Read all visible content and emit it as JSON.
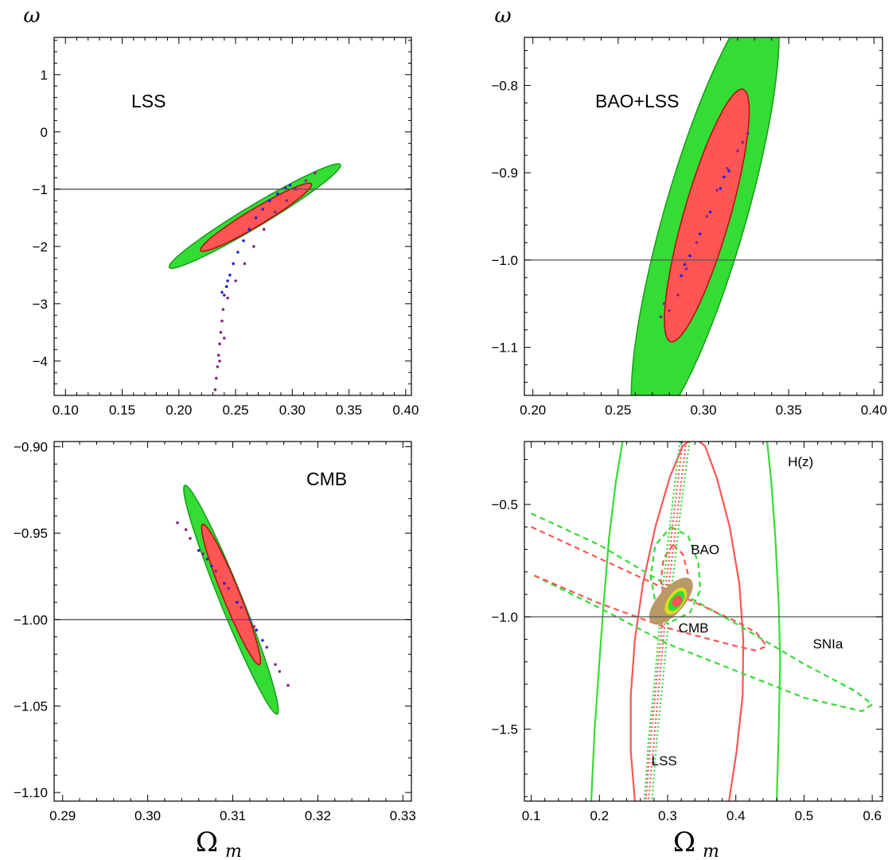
{
  "figure": {
    "xlabel": "Ω",
    "xlabel_sub": "m",
    "ylabel": "ω"
  },
  "colors": {
    "green": "#33dd33",
    "red": "#ff5555",
    "blue": "#2222dd",
    "purple": "#882288",
    "black": "#000000",
    "tan": "#bb9966",
    "yellow": "#dddd22"
  },
  "chart_data": [
    {
      "id": "lss",
      "type": "contour",
      "label": "LSS",
      "xlim": [
        0.09,
        0.405
      ],
      "ylim": [
        -4.6,
        1.65
      ],
      "xticks": [
        0.1,
        0.15,
        0.2,
        0.25,
        0.3,
        0.35,
        0.4
      ],
      "xtick_labels": [
        "0.10",
        "0.15",
        "0.20",
        "0.25",
        "0.30",
        "0.35",
        "0.40"
      ],
      "yticks": [
        1,
        0,
        -1,
        -2,
        -3,
        -4
      ],
      "ytick_labels": [
        "1",
        "0",
        "−1",
        "−2",
        "−3",
        "−4"
      ],
      "reference_line": -1,
      "ellipses": [
        {
          "level": "2sigma",
          "cx": 0.267,
          "cy": -1.47,
          "a": 0.088,
          "b": 0.0095,
          "angle": 31
        },
        {
          "level": "1sigma",
          "cx": 0.268,
          "cy": -1.49,
          "a": 0.057,
          "b": 0.0075,
          "angle": 31
        }
      ],
      "scatter": [
        {
          "color": "purple",
          "points": [
            [
              0.232,
              -4.5
            ],
            [
              0.233,
              -4.3
            ],
            [
              0.234,
              -4.1
            ],
            [
              0.235,
              -3.9
            ],
            [
              0.236,
              -3.7
            ],
            [
              0.237,
              -3.5
            ],
            [
              0.238,
              -3.3
            ],
            [
              0.239,
              -3.1
            ],
            [
              0.243,
              -2.9
            ],
            [
              0.25,
              -2.6
            ],
            [
              0.258,
              -2.3
            ],
            [
              0.266,
              -2.0
            ],
            [
              0.275,
              -1.7
            ],
            [
              0.285,
              -1.4
            ],
            [
              0.295,
              -1.2
            ],
            [
              0.303,
              -1.0
            ],
            [
              0.312,
              -0.85
            ],
            [
              0.32,
              -0.72
            ],
            [
              0.236,
              -4.0
            ],
            [
              0.24,
              -3.6
            ]
          ]
        },
        {
          "color": "blue",
          "points": [
            [
              0.24,
              -2.85
            ],
            [
              0.242,
              -2.7
            ],
            [
              0.245,
              -2.5
            ],
            [
              0.248,
              -2.3
            ],
            [
              0.252,
              -2.1
            ],
            [
              0.257,
              -1.9
            ],
            [
              0.262,
              -1.7
            ],
            [
              0.268,
              -1.5
            ],
            [
              0.274,
              -1.35
            ],
            [
              0.28,
              -1.2
            ],
            [
              0.287,
              -1.08
            ],
            [
              0.294,
              -0.98
            ],
            [
              0.298,
              -0.93
            ],
            [
              0.238,
              -2.8
            ],
            [
              0.243,
              -2.6
            ]
          ]
        }
      ]
    },
    {
      "id": "bao_lss",
      "type": "contour",
      "label": "BAO+LSS",
      "xlim": [
        0.195,
        0.405
      ],
      "ylim": [
        -1.155,
        -0.745
      ],
      "xticks": [
        0.2,
        0.25,
        0.3,
        0.35,
        0.4
      ],
      "xtick_labels": [
        "0.20",
        "0.25",
        "0.30",
        "0.35",
        "0.40"
      ],
      "yticks": [
        -0.8,
        -0.9,
        -1.0,
        -1.1
      ],
      "ytick_labels": [
        "−0.8",
        "−0.9",
        "−1.0",
        "−1.1"
      ],
      "reference_line": -1.0,
      "ellipses": [
        {
          "level": "2sigma",
          "cx": 0.301,
          "cy": -0.949,
          "a": 0.133,
          "b": 0.024,
          "angle": 74
        },
        {
          "level": "1sigma",
          "cx": 0.302,
          "cy": -0.949,
          "a": 0.077,
          "b": 0.0135,
          "angle": 74
        }
      ],
      "scatter": [
        {
          "color": "purple",
          "points": [
            [
              0.275,
              -1.065
            ],
            [
              0.28,
              -1.058
            ],
            [
              0.285,
              -1.04
            ],
            [
              0.29,
              -1.01
            ],
            [
              0.296,
              -0.98
            ],
            [
              0.302,
              -0.95
            ],
            [
              0.308,
              -0.92
            ],
            [
              0.314,
              -0.895
            ],
            [
              0.32,
              -0.875
            ],
            [
              0.326,
              -0.855
            ],
            [
              0.277,
              -1.05
            ],
            [
              0.323,
              -0.865
            ]
          ]
        },
        {
          "color": "blue",
          "points": [
            [
              0.287,
              -1.018
            ],
            [
              0.292,
              -0.995
            ],
            [
              0.298,
              -0.97
            ],
            [
              0.304,
              -0.945
            ],
            [
              0.31,
              -0.918
            ],
            [
              0.315,
              -0.898
            ],
            [
              0.289,
              -1.005
            ],
            [
              0.312,
              -0.905
            ]
          ]
        }
      ]
    },
    {
      "id": "cmb",
      "type": "contour",
      "label": "CMB",
      "xlim": [
        0.289,
        0.331
      ],
      "ylim": [
        -1.105,
        -0.897
      ],
      "xticks": [
        0.29,
        0.3,
        0.31,
        0.32,
        0.33
      ],
      "xtick_labels": [
        "0.29",
        "0.30",
        "0.31",
        "0.32",
        "0.33"
      ],
      "yticks": [
        -0.9,
        -0.95,
        -1.0,
        -1.05,
        -1.1
      ],
      "ytick_labels": [
        "−0.90",
        "−0.95",
        "−1.00",
        "−1.05",
        "−1.10"
      ],
      "reference_line": -1.0,
      "ellipses": [
        {
          "level": "2sigma",
          "cx": 0.3098,
          "cy": -0.9885,
          "a": 0.0145,
          "b": 0.0013,
          "angle": -68
        },
        {
          "level": "1sigma",
          "cx": 0.3098,
          "cy": -0.9855,
          "a": 0.0089,
          "b": 0.001,
          "angle": -68
        }
      ],
      "scatter": [
        {
          "color": "purple",
          "points": [
            [
              0.3035,
              -0.944
            ],
            [
              0.305,
              -0.953
            ],
            [
              0.3065,
              -0.962
            ],
            [
              0.308,
              -0.972
            ],
            [
              0.3095,
              -0.982
            ],
            [
              0.311,
              -0.993
            ],
            [
              0.3125,
              -1.004
            ],
            [
              0.314,
              -1.016
            ],
            [
              0.3155,
              -1.03
            ],
            [
              0.3165,
              -1.038
            ],
            [
              0.3045,
              -0.948
            ],
            [
              0.315,
              -1.026
            ]
          ]
        },
        {
          "color": "blue",
          "points": [
            [
              0.306,
              -0.96
            ],
            [
              0.3075,
              -0.969
            ],
            [
              0.309,
              -0.979
            ],
            [
              0.3105,
              -0.99
            ],
            [
              0.312,
              -1.0
            ],
            [
              0.3135,
              -1.012
            ],
            [
              0.307,
              -0.965
            ],
            [
              0.3128,
              -1.006
            ]
          ]
        }
      ]
    },
    {
      "id": "combined",
      "type": "contour",
      "labels": [
        "H(z)",
        "BAO",
        "CMB",
        "SNIa",
        "LSS"
      ],
      "xlim": [
        0.09,
        0.615
      ],
      "ylim": [
        -1.82,
        -0.22
      ],
      "xticks": [
        0.1,
        0.2,
        0.3,
        0.4,
        0.5,
        0.6
      ],
      "xtick_labels": [
        "0.1",
        "0.2",
        "0.3",
        "0.4",
        "0.5",
        "0.6"
      ],
      "yticks": [
        -0.5,
        -1.0,
        -1.5
      ],
      "ytick_labels": [
        "−0.5",
        "−1.0",
        "−1.5"
      ],
      "reference_line": -1.0,
      "curves": [
        {
          "name": "H(z)",
          "color": "red",
          "style": "solid",
          "points": [
            [
              0.252,
              -1.82
            ],
            [
              0.246,
              -1.6
            ],
            [
              0.246,
              -1.35
            ],
            [
              0.252,
              -1.1
            ],
            [
              0.264,
              -0.85
            ],
            [
              0.282,
              -0.6
            ],
            [
              0.303,
              -0.38
            ],
            [
              0.322,
              -0.24
            ],
            [
              0.338,
              -0.2
            ],
            [
              0.355,
              -0.24
            ],
            [
              0.372,
              -0.38
            ],
            [
              0.391,
              -0.6
            ],
            [
              0.405,
              -0.85
            ],
            [
              0.411,
              -1.1
            ],
            [
              0.41,
              -1.35
            ],
            [
              0.401,
              -1.6
            ],
            [
              0.39,
              -1.82
            ]
          ]
        },
        {
          "name": "H(z)",
          "color": "green",
          "style": "solid",
          "points": [
            [
              0.188,
              -1.82
            ],
            [
              0.193,
              -1.5
            ],
            [
              0.2,
              -1.2
            ],
            [
              0.206,
              -0.95
            ],
            [
              0.214,
              -0.65
            ],
            [
              0.224,
              -0.4
            ],
            [
              0.234,
              -0.22
            ]
          ]
        },
        {
          "name": "H(z)",
          "color": "green",
          "style": "solid",
          "points": [
            [
              0.446,
              -0.22
            ],
            [
              0.452,
              -0.4
            ],
            [
              0.458,
              -0.65
            ],
            [
              0.463,
              -0.95
            ],
            [
              0.465,
              -1.2
            ],
            [
              0.463,
              -1.5
            ],
            [
              0.46,
              -1.82
            ]
          ]
        },
        {
          "name": "SNIa",
          "color": "green",
          "style": "dashed",
          "points": [
            [
              0.1,
              -0.54
            ],
            [
              0.2,
              -0.68
            ],
            [
              0.3,
              -0.86
            ],
            [
              0.4,
              -1.03
            ],
            [
              0.5,
              -1.21
            ],
            [
              0.575,
              -1.33
            ],
            [
              0.6,
              -1.39
            ],
            [
              0.585,
              -1.42
            ],
            [
              0.5,
              -1.36
            ],
            [
              0.4,
              -1.24
            ],
            [
              0.3,
              -1.12
            ],
            [
              0.2,
              -0.96
            ],
            [
              0.1,
              -0.81
            ]
          ]
        },
        {
          "name": "SNIa",
          "color": "red",
          "style": "dashed",
          "points": [
            [
              0.1,
              -0.6
            ],
            [
              0.2,
              -0.74
            ],
            [
              0.3,
              -0.88
            ],
            [
              0.4,
              -1.02
            ],
            [
              0.43,
              -1.07
            ],
            [
              0.445,
              -1.13
            ],
            [
              0.43,
              -1.15
            ],
            [
              0.4,
              -1.13
            ],
            [
              0.3,
              -1.05
            ],
            [
              0.2,
              -0.94
            ],
            [
              0.1,
              -0.81
            ]
          ]
        },
        {
          "name": "BAO",
          "color": "green",
          "style": "dashed",
          "points": [
            [
              0.305,
              -0.6
            ],
            [
              0.33,
              -0.64
            ],
            [
              0.345,
              -0.76
            ],
            [
              0.348,
              -0.88
            ],
            [
              0.333,
              -0.98
            ],
            [
              0.3,
              -1.03
            ],
            [
              0.283,
              -0.95
            ],
            [
              0.275,
              -0.82
            ],
            [
              0.282,
              -0.68
            ],
            [
              0.305,
              -0.6
            ]
          ]
        },
        {
          "name": "BAO",
          "color": "red",
          "style": "dashed",
          "points": [
            [
              0.308,
              -0.68
            ],
            [
              0.322,
              -0.72
            ],
            [
              0.33,
              -0.81
            ],
            [
              0.326,
              -0.91
            ],
            [
              0.312,
              -0.97
            ],
            [
              0.296,
              -0.94
            ],
            [
              0.29,
              -0.84
            ],
            [
              0.294,
              -0.74
            ],
            [
              0.308,
              -0.68
            ]
          ]
        },
        {
          "name": "LSS",
          "color": "green",
          "style": "dotted",
          "points": [
            [
              0.318,
              -0.22
            ],
            [
              0.305,
              -0.55
            ],
            [
              0.292,
              -0.9
            ],
            [
              0.282,
              -1.25
            ],
            [
              0.272,
              -1.55
            ],
            [
              0.266,
              -1.82
            ]
          ]
        },
        {
          "name": "LSS",
          "color": "green",
          "style": "dotted",
          "points": [
            [
              0.332,
              -0.22
            ],
            [
              0.318,
              -0.55
            ],
            [
              0.305,
              -0.9
            ],
            [
              0.294,
              -1.25
            ],
            [
              0.284,
              -1.55
            ],
            [
              0.277,
              -1.82
            ]
          ]
        },
        {
          "name": "LSS",
          "color": "red",
          "style": "dotted",
          "points": [
            [
              0.322,
              -0.22
            ],
            [
              0.309,
              -0.55
            ],
            [
              0.296,
              -0.9
            ],
            [
              0.285,
              -1.25
            ],
            [
              0.275,
              -1.55
            ],
            [
              0.268,
              -1.82
            ]
          ]
        },
        {
          "name": "LSS",
          "color": "red",
          "style": "dotted",
          "points": [
            [
              0.327,
              -0.22
            ],
            [
              0.314,
              -0.55
            ],
            [
              0.3,
              -0.9
            ],
            [
              0.289,
              -1.25
            ],
            [
              0.28,
              -1.55
            ],
            [
              0.272,
              -1.82
            ]
          ]
        }
      ],
      "ellipses": [
        {
          "level": "BAO+LSS-2sigma",
          "color": "tan",
          "cx": 0.305,
          "cy": -0.93,
          "a": 0.042,
          "b": 0.018,
          "angle": 48
        },
        {
          "level": "CMB-2sigma",
          "color": "yellow",
          "cx": 0.312,
          "cy": -0.93,
          "a": 0.022,
          "b": 0.011,
          "angle": 55
        },
        {
          "level": "CMB-1sigma",
          "color": "green",
          "cx": 0.313,
          "cy": -0.93,
          "a": 0.016,
          "b": 0.008,
          "angle": 55
        },
        {
          "level": "combined-1sigma",
          "color": "red",
          "cx": 0.314,
          "cy": -0.93,
          "a": 0.008,
          "b": 0.006,
          "angle": 55
        }
      ],
      "annotations": [
        {
          "text": "H(z)",
          "x": 0.495,
          "y": -0.33
        },
        {
          "text": "BAO",
          "x": 0.355,
          "y": -0.72
        },
        {
          "text": "CMB",
          "x": 0.338,
          "y": -1.07
        },
        {
          "text": "SNIa",
          "x": 0.535,
          "y": -1.14
        },
        {
          "text": "LSS",
          "x": 0.295,
          "y": -1.66
        }
      ]
    }
  ]
}
